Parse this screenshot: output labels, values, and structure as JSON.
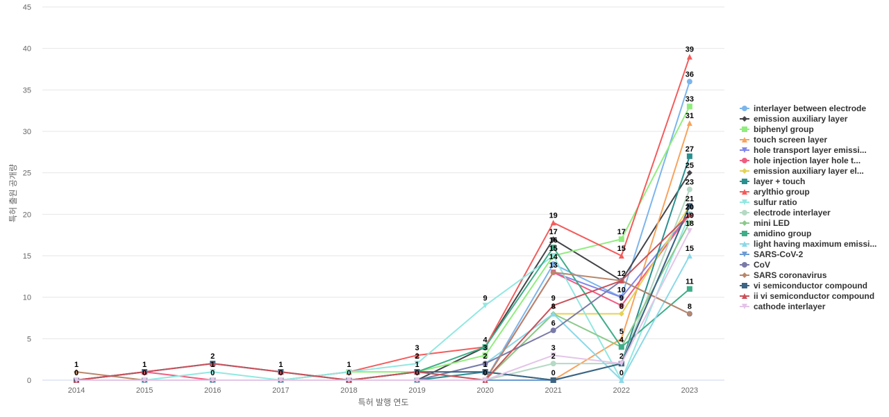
{
  "chart_data": {
    "type": "line",
    "title": "",
    "xlabel": "특허 발행 연도",
    "ylabel": "특허 출원 공개량",
    "ylim": [
      0,
      45
    ],
    "yticks": [
      0,
      5,
      10,
      15,
      20,
      25,
      30,
      35,
      40,
      45
    ],
    "grid": true,
    "legend_position": "right",
    "x": [
      "2014",
      "2015",
      "2016",
      "2017",
      "2018",
      "2019",
      "2020",
      "2021",
      "2022",
      "2023"
    ],
    "series": [
      {
        "name": "interlayer between electrode",
        "color": "#7cb5ec",
        "marker": "circle",
        "values": [
          0,
          0,
          0,
          0,
          0,
          0,
          0,
          14,
          10,
          36
        ]
      },
      {
        "name": "emission auxiliary layer",
        "color": "#434348",
        "marker": "diamond",
        "values": [
          0,
          0,
          0,
          0,
          0,
          0,
          4,
          17,
          12,
          25
        ]
      },
      {
        "name": "biphenyl group",
        "color": "#90ed7d",
        "marker": "square",
        "values": [
          0,
          0,
          0,
          0,
          1,
          1,
          3,
          15,
          17,
          33
        ]
      },
      {
        "name": "touch screen layer",
        "color": "#f7a35c",
        "marker": "triangle",
        "values": [
          0,
          0,
          0,
          0,
          0,
          0,
          0,
          0,
          5,
          31
        ]
      },
      {
        "name": "hole transport layer emissi...",
        "color": "#8085e9",
        "marker": "triangle-down",
        "values": [
          0,
          0,
          0,
          0,
          0,
          0,
          0,
          13,
          10,
          20
        ]
      },
      {
        "name": "hole injection layer hole t...",
        "color": "#f15c80",
        "marker": "circle",
        "values": [
          0,
          1,
          0,
          0,
          0,
          0,
          0,
          13,
          9,
          20
        ]
      },
      {
        "name": "emission auxiliary layer el...",
        "color": "#e4d354",
        "marker": "diamond",
        "values": [
          0,
          0,
          0,
          0,
          0,
          0,
          0,
          8,
          8,
          21
        ]
      },
      {
        "name": "layer + touch",
        "color": "#2b908f",
        "marker": "square",
        "values": [
          0,
          0,
          0,
          0,
          0,
          0,
          1,
          0,
          2,
          27
        ]
      },
      {
        "name": "arylthio group",
        "color": "#f45b5b",
        "marker": "triangle",
        "values": [
          0,
          0,
          0,
          0,
          1,
          3,
          4,
          19,
          15,
          39
        ]
      },
      {
        "name": "sulfur ratio",
        "color": "#91e8e1",
        "marker": "triangle-down",
        "values": [
          0,
          0,
          1,
          0,
          1,
          2,
          9,
          15,
          0,
          20
        ]
      },
      {
        "name": "electrode interlayer",
        "color": "#b5d9c4",
        "marker": "circle",
        "values": [
          0,
          0,
          0,
          0,
          0,
          0,
          0,
          2,
          2,
          23
        ]
      },
      {
        "name": "mini LED",
        "color": "#8bc98b",
        "marker": "diamond",
        "values": [
          0,
          0,
          0,
          0,
          0,
          0,
          0,
          8,
          4,
          19
        ]
      },
      {
        "name": "amidino group",
        "color": "#3fad88",
        "marker": "square",
        "values": [
          0,
          0,
          0,
          0,
          0,
          1,
          4,
          16,
          4,
          11
        ]
      },
      {
        "name": "light having maximum emissi...",
        "color": "#8ad8e8",
        "marker": "triangle",
        "values": [
          0,
          0,
          0,
          0,
          0,
          0,
          2,
          8,
          0,
          15
        ]
      },
      {
        "name": "SARS-CoV-2",
        "color": "#6b9bd2",
        "marker": "triangle-down",
        "values": [
          0,
          0,
          0,
          0,
          0,
          0,
          0,
          0,
          2,
          21
        ]
      },
      {
        "name": "CoV",
        "color": "#7a7aa8",
        "marker": "circle",
        "values": [
          0,
          0,
          0,
          0,
          0,
          0,
          2,
          6,
          12,
          8
        ]
      },
      {
        "name": "SARS coronavirus",
        "color": "#b8876a",
        "marker": "diamond",
        "values": [
          1,
          0,
          0,
          0,
          0,
          0,
          0,
          13,
          12,
          8
        ]
      },
      {
        "name": "vi semiconductor compound",
        "color": "#3d6482",
        "marker": "square",
        "values": [
          0,
          1,
          2,
          1,
          0,
          1,
          1,
          0,
          2,
          21
        ]
      },
      {
        "name": "ii vi semiconductor compound",
        "color": "#c8515a",
        "marker": "triangle",
        "values": [
          0,
          1,
          2,
          1,
          0,
          1,
          0,
          9,
          12,
          20
        ]
      },
      {
        "name": "cathode interlayer",
        "color": "#e3c5e8",
        "marker": "triangle-down",
        "values": [
          0,
          0,
          0,
          0,
          0,
          0,
          0,
          3,
          2,
          18
        ]
      }
    ]
  }
}
